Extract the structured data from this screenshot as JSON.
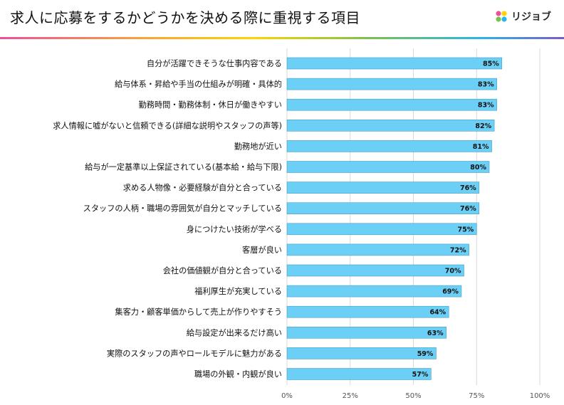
{
  "page": {
    "title": "求人に応募をするかどうかを決める際に重視する項目"
  },
  "logo": {
    "text": "リジョブ",
    "icon": "pinwheel-logo-icon",
    "colors": [
      "#f04e98",
      "#ffd400",
      "#29b6e8",
      "#7cc24a"
    ]
  },
  "chart_data": {
    "type": "bar",
    "orientation": "horizontal",
    "categories": [
      "自分が活躍できそうな仕事内容である",
      "給与体系・昇給や手当の仕組みが明確・具体的",
      "勤務時間・勤務体制・休日が働きやすい",
      "求人情報に嘘がないと信頼できる(詳細な説明やスタッフの声等)",
      "勤務地が近い",
      "給与が一定基準以上保証されている(基本給・給与下限)",
      "求める人物像・必要経験が自分と合っている",
      "スタッフの人柄・職場の雰囲気が自分とマッチしている",
      "身につけたい技術が学べる",
      "客層が良い",
      "会社の価値観が自分と合っている",
      "福利厚生が充実している",
      "集客力・顧客単価からして売上が作りやすそう",
      "給与設定が出来るだけ高い",
      "実際のスタッフの声やロールモデルに魅力がある",
      "職場の外観・内観が良い"
    ],
    "values": [
      85,
      83,
      83,
      82,
      81,
      80,
      76,
      76,
      75,
      72,
      70,
      69,
      64,
      63,
      59,
      57
    ],
    "data_labels": [
      "85%",
      "83%",
      "83%",
      "82%",
      "81%",
      "80%",
      "76%",
      "76%",
      "75%",
      "72%",
      "70%",
      "69%",
      "64%",
      "63%",
      "59%",
      "57%"
    ],
    "xlim": [
      0,
      100
    ],
    "x_ticks": [
      0,
      25,
      50,
      75,
      100
    ],
    "x_tick_labels": [
      "0%",
      "25%",
      "50%",
      "75%",
      "100%"
    ],
    "grid": true,
    "bar_color": "#6ccff6",
    "bar_edge_color": "#4a9fc4",
    "grid_color": "#d9d9d9"
  }
}
